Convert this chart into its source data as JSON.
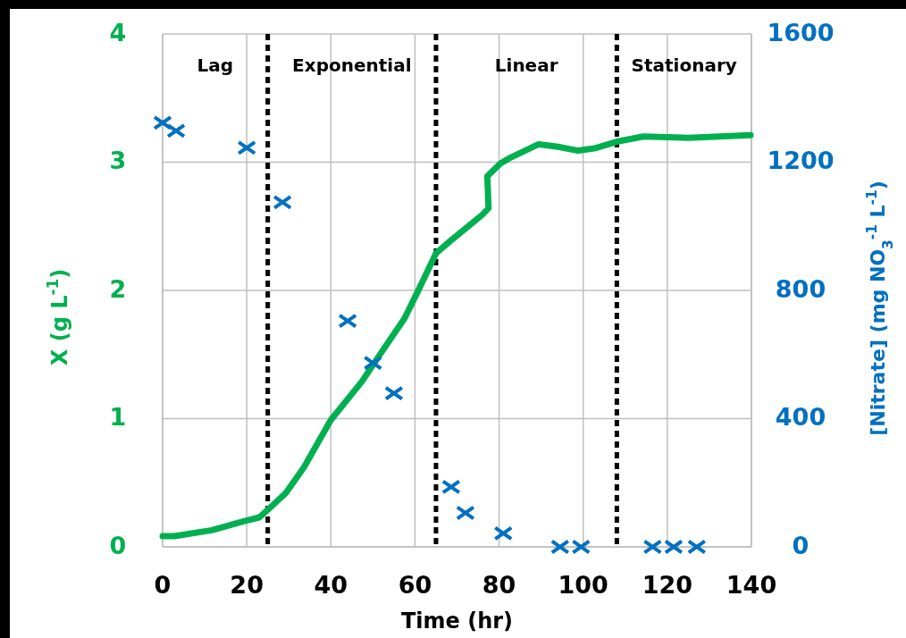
{
  "chart_data": {
    "type": "line",
    "xlabel": "Time (hr)",
    "ylabel": "X (g L$^{-1}$)",
    "y2label": "[Nitrate] (mg NO$_{3}$$^{-1}$ L$^{-1}$)",
    "xlim": [
      0,
      140
    ],
    "xticks": [
      0,
      20,
      40,
      60,
      80,
      100,
      120,
      140
    ],
    "ylim": [
      0,
      4
    ],
    "yticks": [
      0,
      1,
      2,
      3,
      4
    ],
    "y2lim": [
      0,
      1600
    ],
    "y2ticks": [
      0,
      400,
      800,
      1200,
      1600
    ],
    "grid": true,
    "series": [
      {
        "color": "#00b050",
        "marker": "none",
        "x": [
          0,
          2.8,
          11.7,
          19.3,
          23,
          25.7,
          29.3,
          33.6,
          40,
          47.4,
          52.7,
          57.5,
          60.5,
          65,
          68.2,
          76,
          77.5,
          77.2,
          80.3,
          82.4,
          89.4,
          94,
          98.8,
          103,
          108,
          114.3,
          125,
          139.8
        ],
        "values": [
          0.084,
          0.084,
          0.13,
          0.2,
          0.23,
          0.31,
          0.42,
          0.62,
          0.99,
          1.29,
          1.55,
          1.78,
          1.98,
          2.29,
          2.38,
          2.59,
          2.64,
          2.89,
          2.99,
          3.03,
          3.14,
          3.12,
          3.09,
          3.11,
          3.16,
          3.2,
          3.19,
          3.21
        ]
      },
      {
        "type": "scatter",
        "axis": "y2",
        "color": "#0070c0",
        "marker": "cross",
        "x": [
          0,
          3.2,
          20,
          28.5,
          44,
          50,
          55,
          68.6,
          72,
          81,
          94.5,
          99.5,
          116.5,
          121.5,
          127
        ],
        "values": [
          1323,
          1298,
          1245,
          1075,
          705,
          574,
          479,
          187,
          106,
          42,
          0,
          0,
          0,
          0,
          0
        ]
      }
    ],
    "ref_lines": [
      {
        "axis": "x",
        "value": 25,
        "color": "#000000",
        "line_style": "dashed"
      },
      {
        "axis": "x",
        "value": 65,
        "color": "#000000",
        "line_style": "dashed"
      },
      {
        "axis": "x",
        "value": 108,
        "color": "#000000",
        "line_style": "dashed"
      }
    ],
    "annotations": [
      "Lag",
      "Exponential",
      "Linear",
      "Stationary"
    ]
  }
}
